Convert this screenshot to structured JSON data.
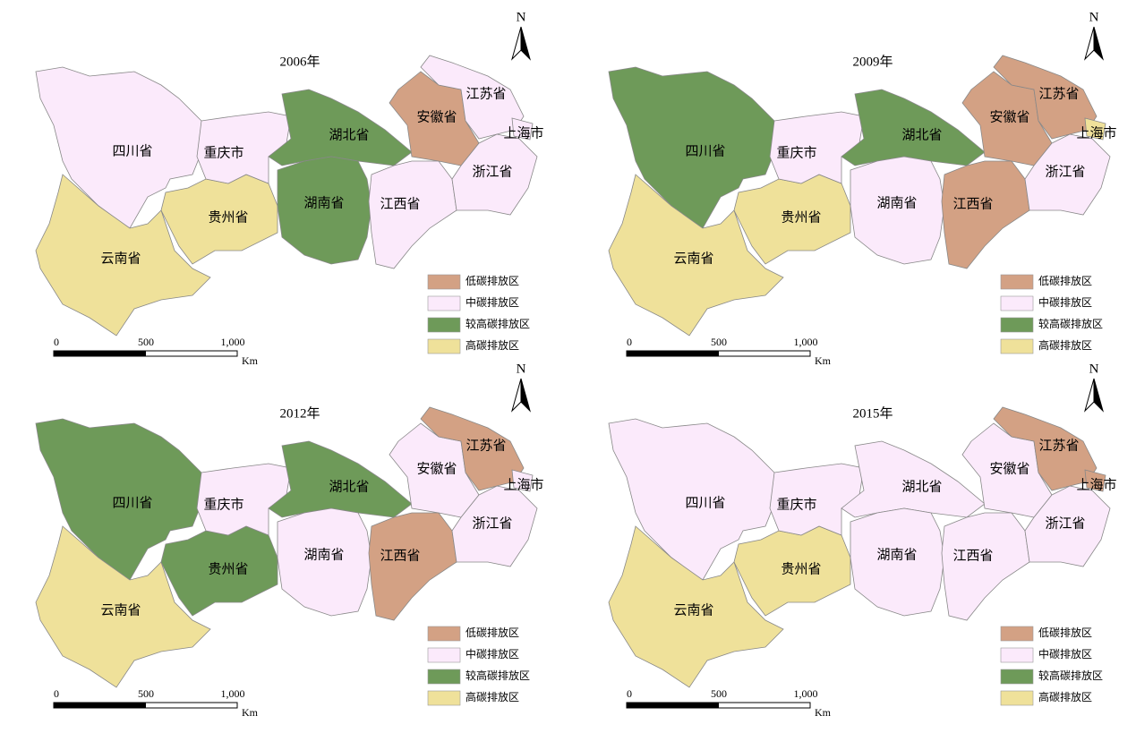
{
  "north": "N",
  "legend": [
    {
      "label": "低碳排放区",
      "color": "#d3a184"
    },
    {
      "label": "中碳排放区",
      "color": "#fbeafb"
    },
    {
      "label": "较高碳排放区",
      "color": "#6e9a59"
    },
    {
      "label": "高碳排放区",
      "color": "#efe19a"
    }
  ],
  "scale": {
    "ticks": [
      "0",
      "500",
      "1,000"
    ],
    "unit": "Km"
  },
  "panels": [
    {
      "title": "2006年",
      "provinces": [
        {
          "label": "四川省",
          "class": 1
        },
        {
          "label": "云南省",
          "class": 3
        },
        {
          "label": "贵州省",
          "class": 3
        },
        {
          "label": "重庆市",
          "class": 1
        },
        {
          "label": "湖北省",
          "class": 2
        },
        {
          "label": "湖南省",
          "class": 2
        },
        {
          "label": "江西省",
          "class": 1
        },
        {
          "label": "安徽省",
          "class": 0
        },
        {
          "label": "江苏省",
          "class": 1
        },
        {
          "label": "浙江省",
          "class": 1
        },
        {
          "label": "上海市",
          "class": 1
        }
      ]
    },
    {
      "title": "2009年",
      "provinces": [
        {
          "label": "四川省",
          "class": 2
        },
        {
          "label": "云南省",
          "class": 3
        },
        {
          "label": "贵州省",
          "class": 3
        },
        {
          "label": "重庆市",
          "class": 1
        },
        {
          "label": "湖北省",
          "class": 2
        },
        {
          "label": "湖南省",
          "class": 1
        },
        {
          "label": "江西省",
          "class": 0
        },
        {
          "label": "安徽省",
          "class": 0
        },
        {
          "label": "江苏省",
          "class": 0
        },
        {
          "label": "浙江省",
          "class": 1
        },
        {
          "label": "上海市",
          "class": 3
        }
      ]
    },
    {
      "title": "2012年",
      "provinces": [
        {
          "label": "四川省",
          "class": 2
        },
        {
          "label": "云南省",
          "class": 3
        },
        {
          "label": "贵州省",
          "class": 2
        },
        {
          "label": "重庆市",
          "class": 1
        },
        {
          "label": "湖北省",
          "class": 2
        },
        {
          "label": "湖南省",
          "class": 1
        },
        {
          "label": "江西省",
          "class": 0
        },
        {
          "label": "安徽省",
          "class": 1
        },
        {
          "label": "江苏省",
          "class": 0
        },
        {
          "label": "浙江省",
          "class": 1
        },
        {
          "label": "上海市",
          "class": 1
        }
      ]
    },
    {
      "title": "2015年",
      "provinces": [
        {
          "label": "四川省",
          "class": 1
        },
        {
          "label": "云南省",
          "class": 3
        },
        {
          "label": "贵州省",
          "class": 3
        },
        {
          "label": "重庆市",
          "class": 1
        },
        {
          "label": "湖北省",
          "class": 1
        },
        {
          "label": "湖南省",
          "class": 1
        },
        {
          "label": "江西省",
          "class": 1
        },
        {
          "label": "安徽省",
          "class": 1
        },
        {
          "label": "江苏省",
          "class": 0
        },
        {
          "label": "浙江省",
          "class": 1
        },
        {
          "label": "上海市",
          "class": 0
        }
      ]
    }
  ]
}
